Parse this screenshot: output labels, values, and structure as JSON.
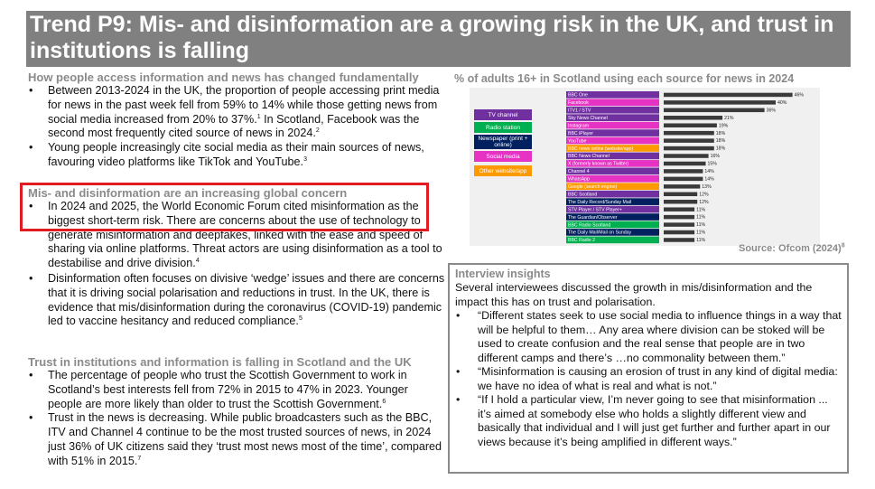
{
  "title": "Trend P9: Mis- and disinformation are a growing risk in the UK, and trust in institutions is falling",
  "sections": [
    {
      "heading": "How people access information and news has changed fundamentally",
      "bullets": [
        {
          "text": "Between 2013-2024 in the UK, the proportion of people accessing print media for news in the past week fell from 59% to 14% while those getting news from social media increased from 20% to 37%.",
          "ref": "1",
          "text2": " In Scotland, Facebook was the second most frequently cited source of news in 2024.",
          "ref2": "2"
        },
        {
          "text": "Young people increasingly cite social media as their main sources of news, favouring video platforms like TikTok and YouTube.",
          "ref": "3"
        }
      ]
    },
    {
      "heading": "Mis- and disinformation are an increasing global concern",
      "bullets": [
        {
          "text": "In 2024 and 2025, the World Economic Forum cited misinformation as the biggest short-term risk. There are concerns about the use of technology to generate misinformation and deepfakes, linked with the ease and speed of sharing via online platforms. Threat actors are using disinformation as a tool to destabilise and drive division.",
          "ref": "4"
        },
        {
          "text": "Disinformation often focuses on divisive ‘wedge’ issues and there are concerns that it is driving social polarisation and reductions in trust. In the UK, there is evidence that mis/disinformation during the coronavirus (COVID-19) pandemic led to vaccine hesitancy and reduced compliance.",
          "ref": "5"
        }
      ]
    },
    {
      "heading": "Trust in institutions and information is falling in Scotland and the UK",
      "bullets": [
        {
          "text": "The percentage of people who trust the Scottish Government to work in Scotland’s best interests fell from 72% in 2015 to 47% in 2023. Younger people are more likely than older to trust the Scottish Government.",
          "ref": "6"
        },
        {
          "text": "Trust in the news is decreasing. While public broadcasters such as the BBC, ITV and Channel 4 continue to be the most trusted sources of news, in 2024 just 36% of UK citizens said they ‘trust most news most of the time’, compared with 51% in 2015.",
          "ref": "7"
        }
      ]
    }
  ],
  "chart_title": "% of adults 16+ in Scotland using each source for news in 2024",
  "source": {
    "text": "Source: Ofcom (2024)",
    "ref": "8"
  },
  "chart_data": {
    "type": "bar",
    "orientation": "horizontal",
    "title": "% of adults 16+ in Scotland using each source for news in 2024",
    "categories": [
      "BBC One",
      "Facebook",
      "ITV1 / STV",
      "Sky News Channel",
      "Instagram",
      "BBC iPlayer",
      "YouTube",
      "BBC news online (website/app)",
      "BBC News Channel",
      "X (formerly known as Twitter)",
      "Channel 4",
      "WhatsApp",
      "Google (search engine)",
      "BBC Scotland",
      "The Daily Record/Sunday Mail",
      "STV Player / STV Player+",
      "The Guardian/Observer",
      "BBC Radio Scotland",
      "The Daily Mail/Mail on Sunday",
      "BBC Radio 2"
    ],
    "values": [
      46,
      40,
      36,
      21,
      19,
      18,
      18,
      18,
      16,
      15,
      14,
      14,
      13,
      12,
      12,
      11,
      11,
      11,
      11,
      11
    ],
    "value_labels": [
      "46%",
      "40%",
      "36%",
      "21%",
      "19%",
      "18%",
      "18%",
      "18%",
      "16%",
      "15%",
      "14%",
      "14%",
      "13%",
      "12%",
      "12%",
      "11%",
      "11%",
      "11%",
      "11%",
      "11%"
    ],
    "label_groups": [
      "tv",
      "social",
      "tv",
      "tv",
      "social",
      "tv",
      "social",
      "other",
      "tv",
      "social",
      "tv",
      "social",
      "other",
      "tv",
      "newspaper",
      "tv",
      "newspaper",
      "radio",
      "newspaper",
      "radio"
    ],
    "legend": [
      {
        "key": "tv",
        "label": "TV channel",
        "color": "#7030a0"
      },
      {
        "key": "radio",
        "label": "Radio station",
        "color": "#00b050"
      },
      {
        "key": "newspaper",
        "label": "Newspaper (print + online)",
        "color": "#002060"
      },
      {
        "key": "social",
        "label": "Social media",
        "color": "#e633c4"
      },
      {
        "key": "other",
        "label": "Other website/app",
        "color": "#ff9900"
      }
    ],
    "bar_color": "#3a3a3a",
    "xlim": [
      0,
      50
    ]
  },
  "interview": {
    "title": "Interview insights",
    "intro": "Several interviewees discussed the growth in mis/disinformation and the impact this has on trust and polarisation.",
    "quotes": [
      "“Different states seek to use social media to influence things in a way that will be helpful to them… Any area where division can be stoked will be used to create confusion and the real sense that people are in two different camps and there’s …no commonality between them.”",
      "“Misinformation is causing an erosion of trust in any kind of digital media: we have no idea of what is real and what is not.”",
      "“If I hold a particular view, I’m never going to see that misinformation ... it’s aimed at somebody else who holds a slightly different view and basically that individual and I will just get further and further apart in our views because it’s being amplified in different ways.”"
    ]
  }
}
